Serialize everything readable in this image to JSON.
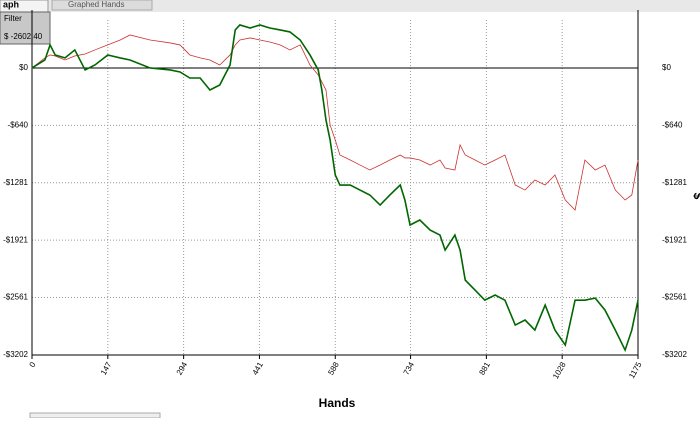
{
  "ui": {
    "tab_active": "aph",
    "tab_other": "Graphed Hands",
    "filter_title": "Filter",
    "filter_value": "$ -2602.40"
  },
  "chart_data": {
    "type": "line",
    "xlabel": "Hands",
    "ylabel": "$",
    "xlim": [
      0,
      1175
    ],
    "xticks": [
      0,
      147,
      294,
      441,
      588,
      734,
      881,
      1028,
      1175
    ],
    "ylim": [
      -3202,
      535
    ],
    "yticks": [
      {
        "value": 0,
        "label": "$0"
      },
      {
        "value": -640,
        "label": "-$640"
      },
      {
        "value": -1281,
        "label": "-$1281"
      },
      {
        "value": -1921,
        "label": "-$1921"
      },
      {
        "value": -2561,
        "label": "-$2561"
      },
      {
        "value": -3202,
        "label": "-$3202"
      }
    ],
    "grid": true,
    "x": [
      0,
      25,
      35,
      45,
      64,
      83,
      103,
      122,
      147,
      171,
      190,
      229,
      268,
      287,
      306,
      326,
      345,
      364,
      384,
      394,
      403,
      423,
      442,
      461,
      481,
      500,
      520,
      539,
      555,
      562,
      570,
      578,
      588,
      597,
      617,
      636,
      655,
      675,
      694,
      714,
      723,
      733,
      752,
      772,
      791,
      801,
      820,
      830,
      840,
      859,
      878,
      898,
      917,
      937,
      956,
      975,
      995,
      1014,
      1034,
      1053,
      1072,
      1092,
      1111,
      1131,
      1150,
      1163,
      1175
    ],
    "series": [
      {
        "color": "#cc3333",
        "values": [
          0,
          112,
          145,
          134,
          89,
          134,
          156,
          201,
          257,
          312,
          368,
          312,
          279,
          257,
          145,
          112,
          89,
          33,
          145,
          257,
          312,
          335,
          312,
          290,
          257,
          201,
          257,
          33,
          -78,
          -156,
          -246,
          -636,
          -804,
          -971,
          -1027,
          -1083,
          -1138,
          -1083,
          -1027,
          -971,
          -1004,
          -1004,
          -1027,
          -1083,
          -1027,
          -1116,
          -1138,
          -859,
          -971,
          -1027,
          -1083,
          -1027,
          -971,
          -1306,
          -1362,
          -1250,
          -1306,
          -1194,
          -1473,
          -1585,
          -1027,
          -1138,
          -1083,
          -1362,
          -1473,
          -1417,
          -1027
        ]
      },
      {
        "color": "#006600",
        "values": [
          0,
          89,
          257,
          145,
          112,
          201,
          -22,
          33,
          145,
          112,
          89,
          0,
          -22,
          -45,
          -112,
          -112,
          -246,
          -190,
          33,
          424,
          480,
          446,
          480,
          446,
          424,
          402,
          312,
          145,
          -22,
          -246,
          -580,
          -804,
          -1194,
          -1306,
          -1306,
          -1362,
          -1417,
          -1529,
          -1417,
          -1306,
          -1473,
          -1752,
          -1696,
          -1808,
          -1864,
          -2031,
          -1864,
          -2031,
          -2366,
          -2478,
          -2590,
          -2533,
          -2590,
          -2868,
          -2812,
          -2924,
          -2645,
          -2924,
          -3091,
          -2590,
          -2590,
          -2567,
          -2701,
          -2924,
          -3147,
          -2924,
          -2590
        ]
      }
    ]
  }
}
